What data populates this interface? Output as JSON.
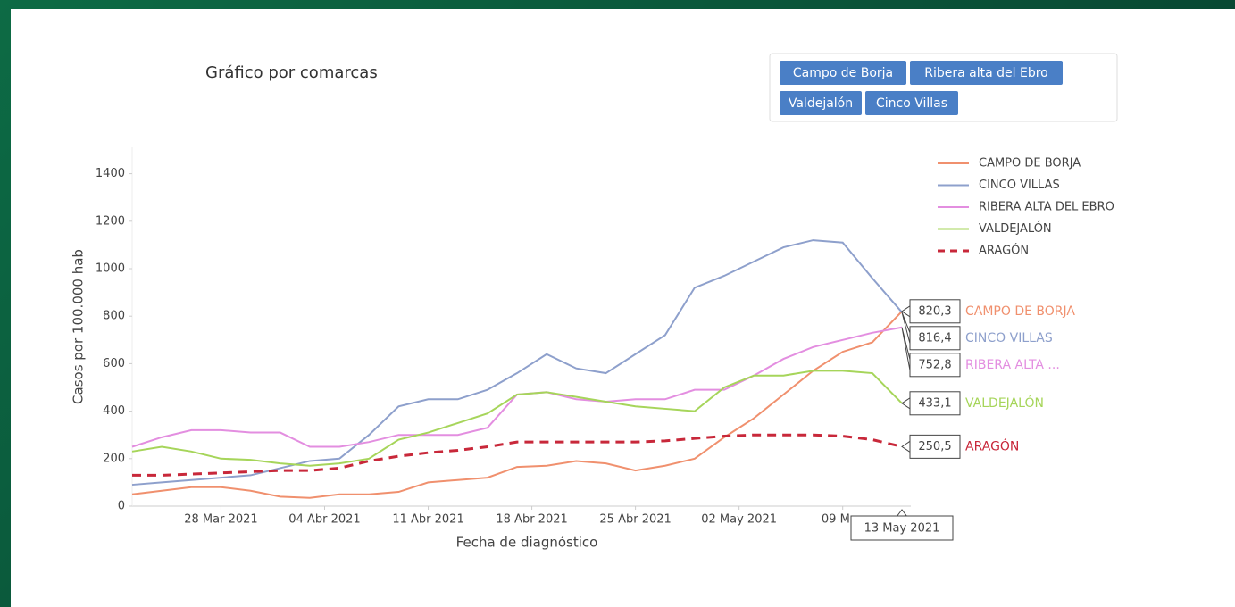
{
  "page": {
    "filters": [
      "Campo de Borja",
      "Ribera alta del Ebro",
      "Valdejalón",
      "Cinco Villas"
    ]
  },
  "chart_data": {
    "type": "line",
    "title": "Gráfico por comarcas",
    "x_label": "Fecha de diagnóstico",
    "y_label": "Casos por 100.000 hab",
    "x": [
      "2021-03-22",
      "2021-03-24",
      "2021-03-26",
      "2021-03-28",
      "2021-03-30",
      "2021-04-01",
      "2021-04-03",
      "2021-04-05",
      "2021-04-07",
      "2021-04-09",
      "2021-04-11",
      "2021-04-13",
      "2021-04-15",
      "2021-04-17",
      "2021-04-19",
      "2021-04-21",
      "2021-04-23",
      "2021-04-25",
      "2021-04-27",
      "2021-04-29",
      "2021-05-01",
      "2021-05-03",
      "2021-05-05",
      "2021-05-07",
      "2021-05-09",
      "2021-05-11",
      "2021-05-13"
    ],
    "xlim": [
      "2021-03-22",
      "2021-05-13"
    ],
    "xticks": [
      {
        "value": "2021-03-28",
        "label": "28 Mar 2021"
      },
      {
        "value": "2021-04-04",
        "label": "04 Abr 2021"
      },
      {
        "value": "2021-04-11",
        "label": "11 Abr 2021"
      },
      {
        "value": "2021-04-18",
        "label": "18 Abr 2021"
      },
      {
        "value": "2021-04-25",
        "label": "25 Abr 2021"
      },
      {
        "value": "2021-05-02",
        "label": "02 May 2021"
      },
      {
        "value": "2021-05-09",
        "label": "09 May"
      }
    ],
    "hover_x_label": "13 May 2021",
    "ylim": [
      0,
      1500
    ],
    "yticks": [
      0,
      200,
      400,
      600,
      800,
      1000,
      1200,
      1400
    ],
    "grid": false,
    "legend": "top-right",
    "series": [
      {
        "name": "CAMPO DE BORJA",
        "hover_name": "CAMPO DE BORJA",
        "color": "#f0906e",
        "dash": false,
        "values": [
          50,
          65,
          80,
          80,
          65,
          40,
          35,
          50,
          50,
          60,
          100,
          110,
          120,
          165,
          170,
          190,
          180,
          150,
          170,
          200,
          290,
          370,
          470,
          570,
          650,
          690,
          820.3
        ],
        "value_labels": [
          null,
          null,
          null,
          null,
          null,
          null,
          null,
          null,
          null,
          null,
          null,
          null,
          null,
          null,
          null,
          null,
          null,
          null,
          null,
          null,
          null,
          null,
          null,
          null,
          null,
          null,
          "820,3"
        ]
      },
      {
        "name": "CINCO VILLAS",
        "hover_name": "CINCO VILLAS",
        "color": "#8ea0cc",
        "dash": false,
        "values": [
          90,
          100,
          110,
          120,
          130,
          160,
          190,
          200,
          300,
          420,
          450,
          450,
          490,
          560,
          640,
          580,
          560,
          640,
          720,
          920,
          970,
          1030,
          1090,
          1120,
          1110,
          960,
          816.4
        ],
        "value_labels": [
          null,
          null,
          null,
          null,
          null,
          null,
          null,
          null,
          null,
          null,
          null,
          null,
          null,
          null,
          null,
          null,
          null,
          null,
          null,
          null,
          null,
          null,
          null,
          null,
          null,
          null,
          "816,4"
        ]
      },
      {
        "name": "RIBERA ALTA DEL EBRO",
        "hover_name": "RIBERA ALTA ...",
        "color": "#e38ee0",
        "dash": false,
        "values": [
          250,
          290,
          320,
          320,
          310,
          310,
          250,
          250,
          270,
          300,
          300,
          300,
          330,
          470,
          480,
          450,
          440,
          450,
          450,
          490,
          490,
          550,
          620,
          670,
          700,
          730,
          752.8
        ],
        "value_labels": [
          null,
          null,
          null,
          null,
          null,
          null,
          null,
          null,
          null,
          null,
          null,
          null,
          null,
          null,
          null,
          null,
          null,
          null,
          null,
          null,
          null,
          null,
          null,
          null,
          null,
          null,
          "752,8"
        ]
      },
      {
        "name": "VALDEJALÓN",
        "hover_name": "VALDEJALÓN",
        "color": "#a6d55a",
        "dash": false,
        "values": [
          230,
          250,
          230,
          200,
          195,
          180,
          170,
          180,
          200,
          280,
          310,
          350,
          390,
          470,
          480,
          460,
          440,
          420,
          410,
          400,
          500,
          550,
          550,
          570,
          570,
          560,
          433.1
        ],
        "value_labels": [
          null,
          null,
          null,
          null,
          null,
          null,
          null,
          null,
          null,
          null,
          null,
          null,
          null,
          null,
          null,
          null,
          null,
          null,
          null,
          null,
          null,
          null,
          null,
          null,
          null,
          null,
          "433,1"
        ]
      },
      {
        "name": "ARAGÓN",
        "hover_name": "ARAGÓN",
        "color": "#c8283a",
        "dash": true,
        "values": [
          130,
          130,
          135,
          140,
          145,
          150,
          150,
          160,
          190,
          210,
          225,
          235,
          250,
          270,
          270,
          270,
          270,
          270,
          275,
          285,
          295,
          300,
          300,
          300,
          295,
          280,
          250.5
        ],
        "value_labels": [
          null,
          null,
          null,
          null,
          null,
          null,
          null,
          null,
          null,
          null,
          null,
          null,
          null,
          null,
          null,
          null,
          null,
          null,
          null,
          null,
          null,
          null,
          null,
          null,
          null,
          null,
          "250,5"
        ]
      }
    ]
  }
}
